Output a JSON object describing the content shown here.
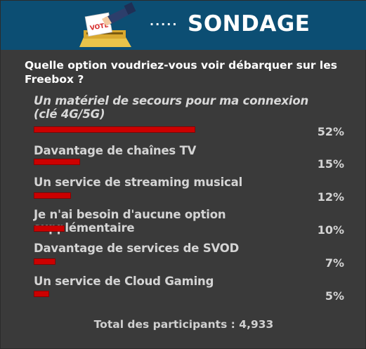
{
  "header": {
    "vote_sign": "VOTE",
    "dots": "·····",
    "title": "SONDAGE"
  },
  "poll": {
    "question": "Quelle option voudriez-vous voir débarquer sur les Freebox ?",
    "options": [
      {
        "label": "Un matériel de secours pour ma connexion (clé 4G/5G)",
        "percent_text": "52%",
        "percent": 52,
        "italic": true
      },
      {
        "label": "Davantage de chaînes TV",
        "percent_text": "15%",
        "percent": 15,
        "italic": false
      },
      {
        "label": "Un service de streaming musical",
        "percent_text": "12%",
        "percent": 12,
        "italic": false
      },
      {
        "label": "Je n'ai besoin d'aucune option supplémentaire",
        "percent_text": "10%",
        "percent": 10,
        "italic": false
      },
      {
        "label": "Davantage de services de SVOD",
        "percent_text": "7%",
        "percent": 7,
        "italic": false
      },
      {
        "label": "Un service de Cloud Gaming",
        "percent_text": "5%",
        "percent": 5,
        "italic": false
      }
    ],
    "total": "Total des participants : 4,933"
  },
  "colors": {
    "header_bg": "#0c4e73",
    "body_bg": "#3a3a3a",
    "bar": "#cc0000",
    "text": "#d4d4d4"
  }
}
